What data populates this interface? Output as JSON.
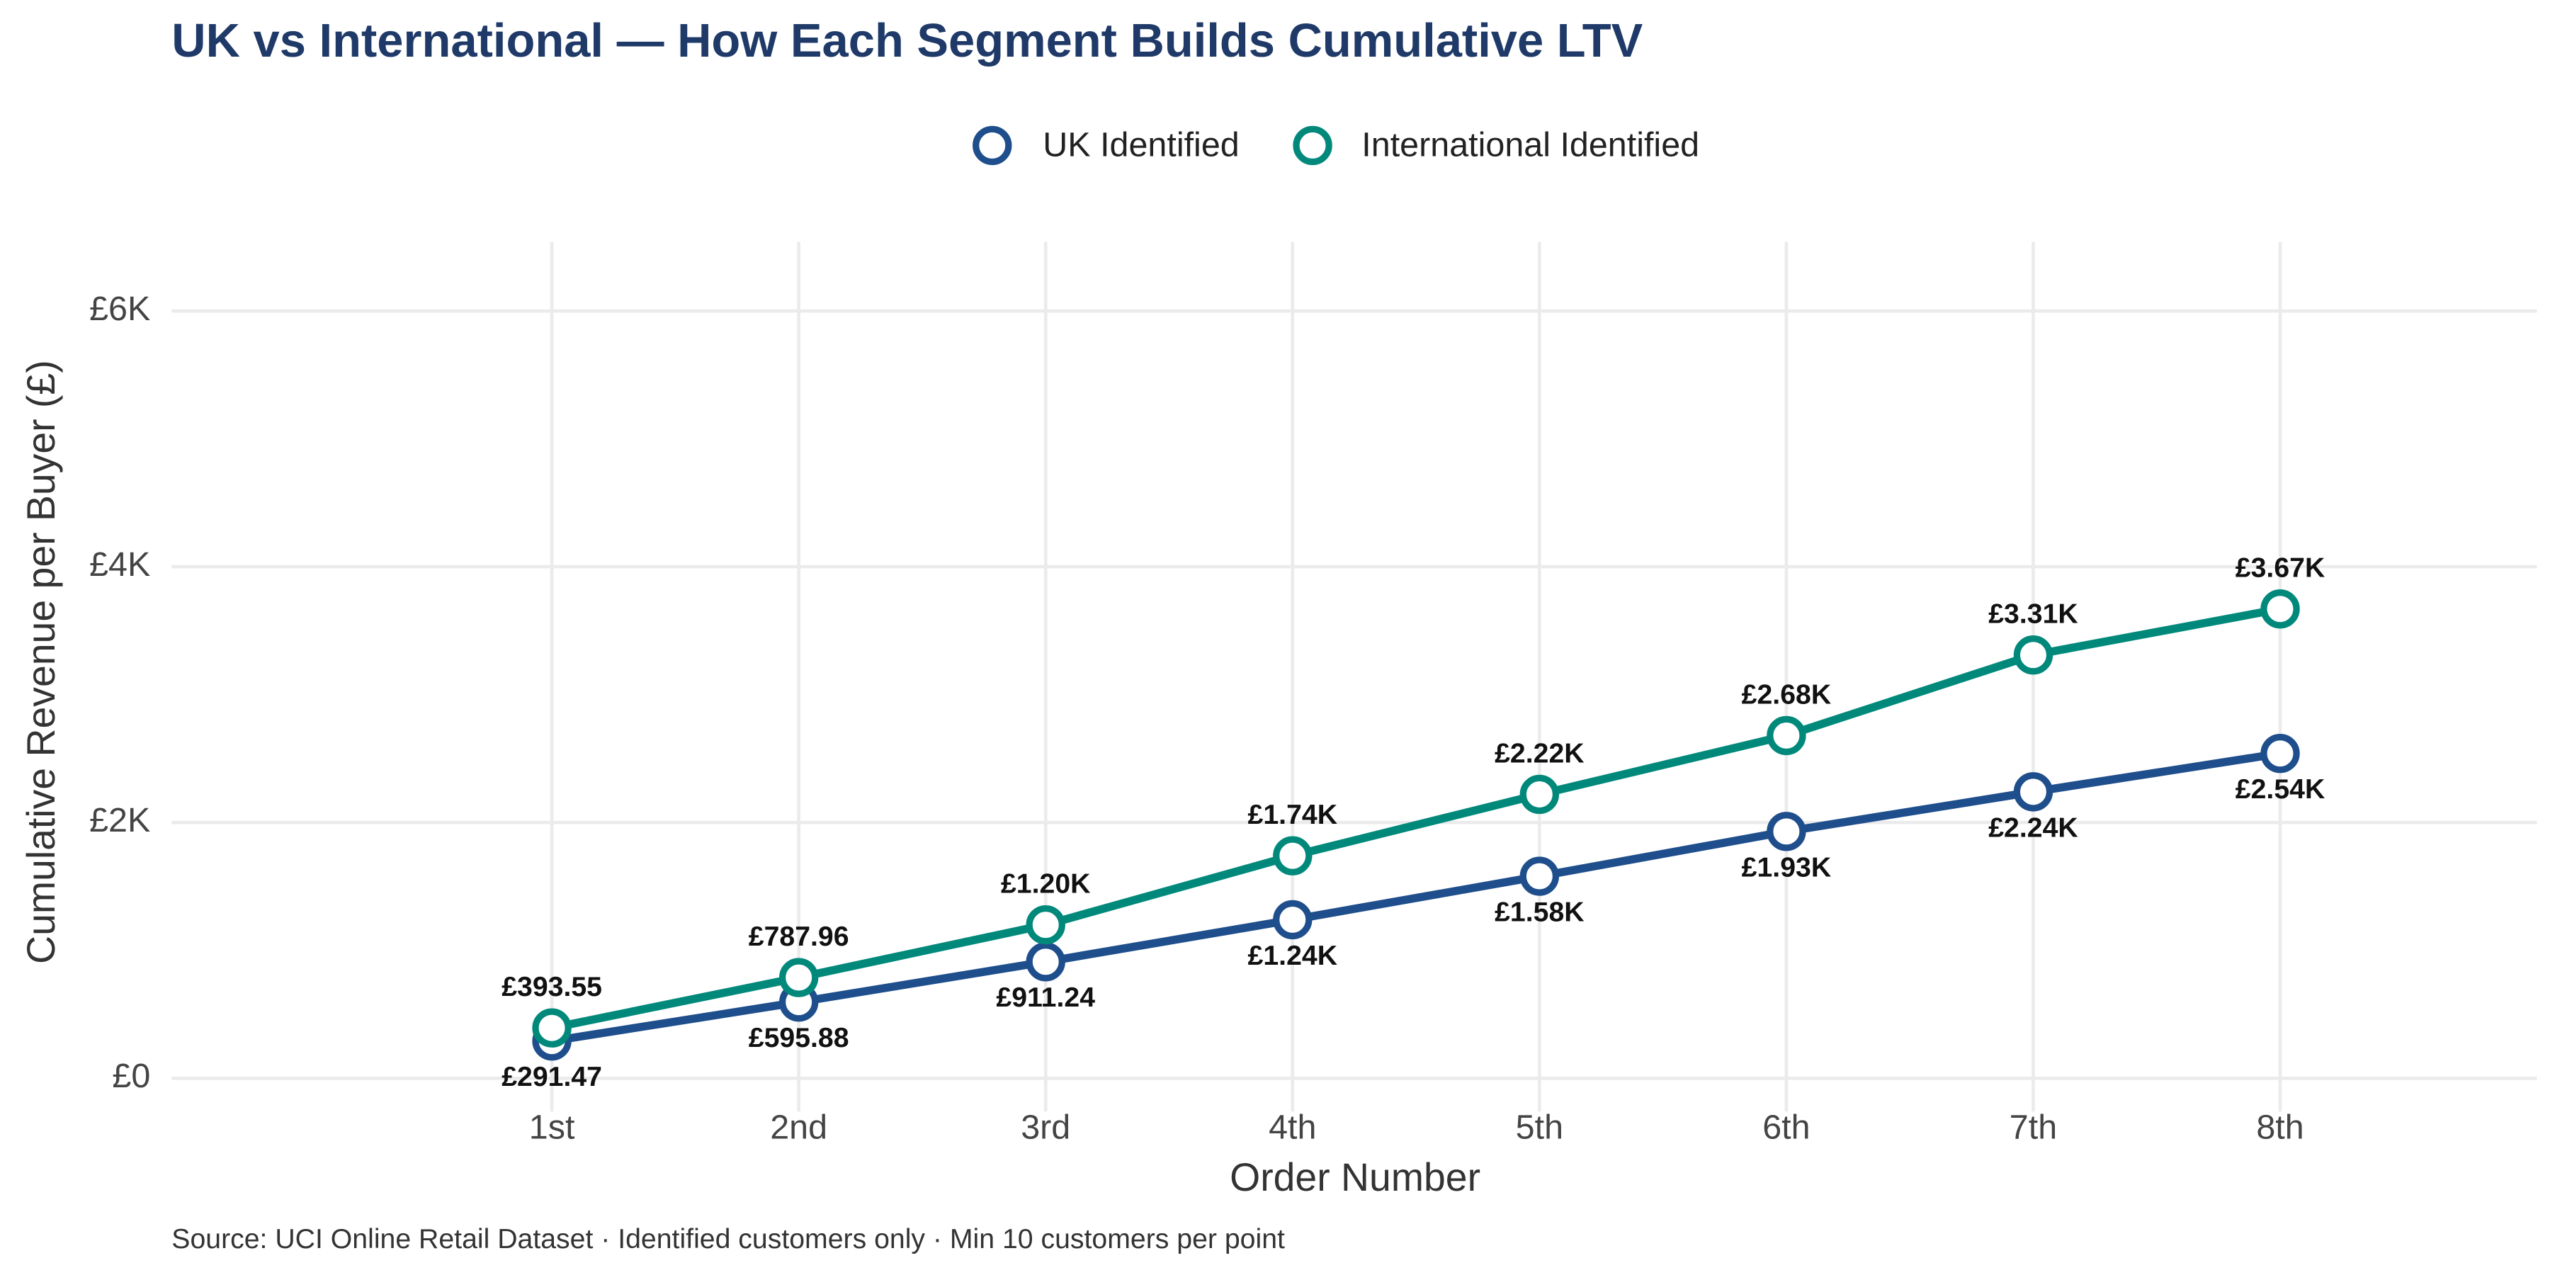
{
  "chart_data": {
    "type": "line",
    "title": "UK vs International — How Each Segment Builds Cumulative LTV",
    "x_label": "Order Number",
    "y_label": "Cumulative Revenue per Buyer (£)",
    "caption": "Source: UCI Online Retail Dataset · Identified customers only · Min 10 customers per point",
    "categories": [
      "1st",
      "2nd",
      "3rd",
      "4th",
      "5th",
      "6th",
      "7th",
      "8th"
    ],
    "series": [
      {
        "name": "UK Identified",
        "color": "#1f4e8c",
        "values": [
          291.47,
          595.88,
          911.24,
          1240,
          1580,
          1930,
          2240,
          2540
        ],
        "value_labels": [
          "£291.47",
          "£595.88",
          "£911.24",
          "£1.24K",
          "£1.58K",
          "£1.93K",
          "£2.24K",
          "£2.54K"
        ]
      },
      {
        "name": "International Identified",
        "color": "#00897b",
        "values": [
          393.55,
          787.96,
          1200,
          1740,
          2220,
          2680,
          3310,
          3670
        ],
        "value_labels": [
          "£393.55",
          "£787.96",
          "£1.20K",
          "£1.74K",
          "£2.22K",
          "£2.68K",
          "£3.31K",
          "£3.67K"
        ]
      }
    ],
    "ylim": [
      -260,
      6540
    ],
    "yticks": [
      {
        "value": 0,
        "label": "£0"
      },
      {
        "value": 2000,
        "label": "£2K"
      },
      {
        "value": 4000,
        "label": "£4K"
      },
      {
        "value": 6000,
        "label": "£6K"
      }
    ],
    "grid": true,
    "legend": "top"
  }
}
